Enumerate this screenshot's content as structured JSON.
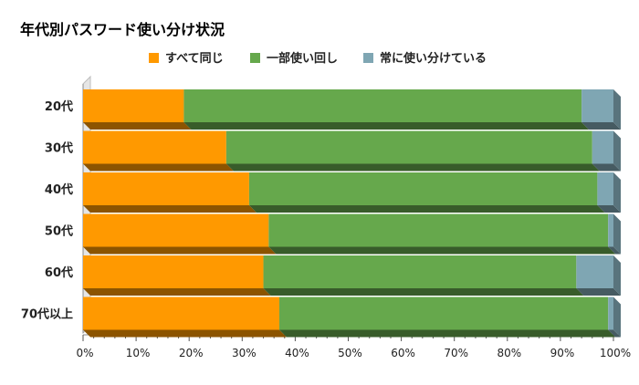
{
  "chart_data": {
    "type": "bar",
    "orientation": "horizontal",
    "stacked": "percent",
    "three_d": true,
    "title": "年代別パスワード使い分け状況",
    "xlabel": "",
    "ylabel": "",
    "xlim": [
      0,
      100
    ],
    "x_ticks": [
      "0%",
      "10%",
      "20%",
      "30%",
      "40%",
      "50%",
      "60%",
      "70%",
      "80%",
      "90%",
      "100%"
    ],
    "legend_position": "top",
    "categories": [
      "20代",
      "30代",
      "40代",
      "50代",
      "60代",
      "70代以上"
    ],
    "series": [
      {
        "name": "すべて同じ",
        "color": "#FF9900",
        "values": [
          19,
          27,
          31,
          35,
          34,
          37
        ]
      },
      {
        "name": "一部使い回し",
        "color": "#66A84C",
        "values": [
          75,
          69,
          65,
          64,
          59,
          62
        ]
      },
      {
        "name": "常に使い分けている",
        "color": "#7FA6B3",
        "values": [
          6,
          4,
          3,
          1,
          7,
          1
        ]
      }
    ]
  }
}
